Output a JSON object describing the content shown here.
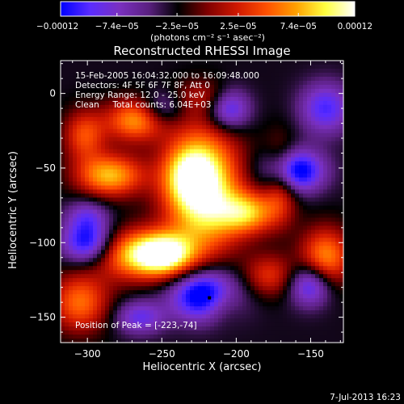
{
  "chart_data": {
    "type": "heatmap",
    "title": "Reconstructed RHESSI Image",
    "xlabel": "Heliocentric X (arcsec)",
    "ylabel": "Heliocentric Y (arcsec)",
    "xlim": [
      -318,
      -128
    ],
    "ylim": [
      -167,
      22
    ],
    "xticks": [
      -300,
      -250,
      -200,
      -150
    ],
    "yticks": [
      0,
      -50,
      -100,
      -150
    ],
    "xtick_labels": [
      "−300",
      "−250",
      "−200",
      "−150"
    ],
    "ytick_labels": [
      "0",
      "−50",
      "−100",
      "−150"
    ],
    "colorbar": {
      "range": [
        -0.00012,
        0.00012
      ],
      "tick_values": [
        -0.00012,
        -7.4e-05,
        -2.5e-05,
        2.5e-05,
        7.4e-05,
        0.00012
      ],
      "tick_labels": [
        "−0.00012",
        "−7.4e−05",
        "−2.5e−05",
        "2.5e−05",
        "7.4e−05",
        "0.00012"
      ],
      "units_label": "(photons cm⁻² s⁻¹ asec⁻²)",
      "colors": [
        "#0000ff",
        "#5a2cff",
        "#7a30c0",
        "#5a2080",
        "#000000",
        "#800000",
        "#d01800",
        "#ff5000",
        "#ffa000",
        "#ffff40",
        "#ffffff"
      ]
    },
    "peak": {
      "x": -223,
      "y": -74
    },
    "annotations": {
      "time_range": "15-Feb-2005 16:04:32.000 to 16:09:48.000",
      "detectors": "Detectors: 4F 5F 6F 7F 8F, Att 0",
      "energy": "Energy Range: 12.0 - 25.0 keV",
      "clean": "Clean     Total counts: 6.04E+03",
      "peak_label": "Position of Peak = [-223,-74]"
    },
    "blobs": [
      {
        "x": -222,
        "y": -65,
        "sx": 18,
        "sy": 30,
        "v": 0.00012
      },
      {
        "x": -232,
        "y": -55,
        "sx": 12,
        "sy": 14,
        "v": 6e-05
      },
      {
        "x": -248,
        "y": -108,
        "sx": 14,
        "sy": 10,
        "v": 0.00011
      },
      {
        "x": -270,
        "y": -108,
        "sx": 18,
        "sy": 12,
        "v": 8e-05
      },
      {
        "x": -285,
        "y": -55,
        "sx": 16,
        "sy": 10,
        "v": 9e-05
      },
      {
        "x": -268,
        "y": -18,
        "sx": 14,
        "sy": 10,
        "v": 8e-05
      },
      {
        "x": -302,
        "y": -28,
        "sx": 10,
        "sy": 12,
        "v": 6e-05
      },
      {
        "x": -305,
        "y": -140,
        "sx": 14,
        "sy": 14,
        "v": 7e-05
      },
      {
        "x": -192,
        "y": -80,
        "sx": 14,
        "sy": 10,
        "v": 8e-05
      },
      {
        "x": -170,
        "y": -58,
        "sx": 8,
        "sy": 18,
        "v": 6e-05
      },
      {
        "x": -140,
        "y": -110,
        "sx": 12,
        "sy": 14,
        "v": 8e-05
      },
      {
        "x": -178,
        "y": -122,
        "sx": 12,
        "sy": 10,
        "v": 5e-05
      },
      {
        "x": -210,
        "y": -140,
        "sx": 10,
        "sy": 10,
        "v": 4e-05
      },
      {
        "x": -220,
        "y": -2,
        "sx": 14,
        "sy": 8,
        "v": 3e-05
      },
      {
        "x": -205,
        "y": -10,
        "sx": 10,
        "sy": 10,
        "v": -7e-05
      },
      {
        "x": -220,
        "y": -135,
        "sx": 16,
        "sy": 12,
        "v": -0.00011
      },
      {
        "x": -162,
        "y": -52,
        "sx": 14,
        "sy": 10,
        "v": -0.0001
      },
      {
        "x": -300,
        "y": -100,
        "sx": 12,
        "sy": 10,
        "v": -8e-05
      },
      {
        "x": -150,
        "y": -128,
        "sx": 10,
        "sy": 10,
        "v": -7e-05
      },
      {
        "x": -250,
        "y": -10,
        "sx": 10,
        "sy": 8,
        "v": -4e-05
      },
      {
        "x": -140,
        "y": -10,
        "sx": 12,
        "sy": 12,
        "v": -6e-05
      },
      {
        "x": -265,
        "y": -150,
        "sx": 12,
        "sy": 8,
        "v": -5e-05
      },
      {
        "x": -300,
        "y": -82,
        "sx": 10,
        "sy": 8,
        "v": -4e-05
      }
    ]
  },
  "footer": {
    "date": "7-Jul-2013 16:23"
  }
}
